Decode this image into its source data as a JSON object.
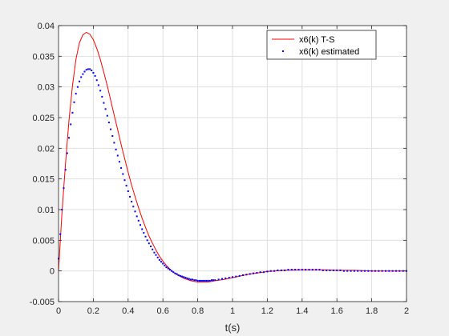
{
  "chart_data": {
    "type": "line",
    "title": "",
    "xlabel": "t(s)",
    "ylabel": "",
    "xlim": [
      0,
      2
    ],
    "ylim": [
      -0.005,
      0.04
    ],
    "x_ticks": [
      0,
      0.2,
      0.4,
      0.6,
      0.8,
      1,
      1.2,
      1.4,
      1.6,
      1.8,
      2
    ],
    "x_tick_labels": [
      "0",
      "0.2",
      "0.4",
      "0.6",
      "0.8",
      "1",
      "1.2",
      "1.4",
      "1.6",
      "1.8",
      "2"
    ],
    "y_ticks": [
      -0.005,
      0,
      0.005,
      0.01,
      0.015,
      0.02,
      0.025,
      0.03,
      0.035,
      0.04
    ],
    "y_tick_labels": [
      "-0.005",
      "0",
      "0.005",
      "0.01",
      "0.015",
      "0.02",
      "0.025",
      "0.03",
      "0.035",
      "0.04"
    ],
    "grid": true,
    "legend_position": "top-right",
    "series": [
      {
        "name": "x6(k) T-S",
        "style": "line",
        "color": "#ff0000",
        "x": [
          0,
          0.02,
          0.04,
          0.06,
          0.08,
          0.1,
          0.12,
          0.14,
          0.16,
          0.18,
          0.2,
          0.22,
          0.24,
          0.26,
          0.28,
          0.3,
          0.32,
          0.34,
          0.36,
          0.38,
          0.4,
          0.42,
          0.44,
          0.46,
          0.48,
          0.5,
          0.52,
          0.54,
          0.56,
          0.58,
          0.6,
          0.62,
          0.64,
          0.66,
          0.68,
          0.7,
          0.72,
          0.74,
          0.76,
          0.78,
          0.8,
          0.82,
          0.84,
          0.86,
          0.88,
          0.9,
          0.95,
          1.0,
          1.05,
          1.1,
          1.15,
          1.2,
          1.3,
          1.4,
          1.5,
          1.6,
          1.7,
          1.8,
          1.9,
          2.0
        ],
        "y": [
          0,
          0.0095,
          0.0175,
          0.0245,
          0.0302,
          0.0345,
          0.0372,
          0.0385,
          0.0389,
          0.0386,
          0.0377,
          0.0363,
          0.0345,
          0.0324,
          0.0302,
          0.0278,
          0.0254,
          0.023,
          0.0206,
          0.0183,
          0.0161,
          0.014,
          0.0121,
          0.0103,
          0.0086,
          0.0071,
          0.0057,
          0.0045,
          0.0034,
          0.0024,
          0.0016,
          0.0009,
          0.0003,
          -0.0002,
          -0.0006,
          -0.0009,
          -0.0012,
          -0.0014,
          -0.0016,
          -0.0017,
          -0.0018,
          -0.0018,
          -0.0018,
          -0.0018,
          -0.0017,
          -0.0016,
          -0.0014,
          -0.0011,
          -0.0008,
          -0.0005,
          -0.0003,
          -0.0001,
          0.0001,
          0.0002,
          0.0002,
          0.0001,
          0.0001,
          0.0,
          0.0,
          0.0
        ]
      },
      {
        "name": "x6(k) estimated",
        "style": "dots",
        "color": "#0000ff",
        "x": [
          0,
          0.01,
          0.02,
          0.03,
          0.04,
          0.05,
          0.06,
          0.07,
          0.08,
          0.09,
          0.1,
          0.11,
          0.12,
          0.13,
          0.14,
          0.15,
          0.16,
          0.17,
          0.18,
          0.19,
          0.2,
          0.21,
          0.22,
          0.23,
          0.24,
          0.25,
          0.26,
          0.27,
          0.28,
          0.29,
          0.3,
          0.31,
          0.32,
          0.33,
          0.34,
          0.35,
          0.36,
          0.37,
          0.38,
          0.39,
          0.4,
          0.41,
          0.42,
          0.43,
          0.44,
          0.45,
          0.46,
          0.47,
          0.48,
          0.49,
          0.5,
          0.51,
          0.52,
          0.53,
          0.54,
          0.55,
          0.56,
          0.57,
          0.58,
          0.59,
          0.6,
          0.61,
          0.62,
          0.63,
          0.64,
          0.65,
          0.66,
          0.67,
          0.68,
          0.69,
          0.7,
          0.71,
          0.72,
          0.73,
          0.74,
          0.75,
          0.76,
          0.77,
          0.78,
          0.79,
          0.8,
          0.81,
          0.82,
          0.83,
          0.84,
          0.85,
          0.86,
          0.87,
          0.88,
          0.89,
          0.9,
          0.92,
          0.94,
          0.96,
          0.98,
          1.0,
          1.02,
          1.04,
          1.06,
          1.08,
          1.1,
          1.12,
          1.14,
          1.16,
          1.18,
          1.2,
          1.22,
          1.24,
          1.26,
          1.28,
          1.3,
          1.32,
          1.34,
          1.36,
          1.38,
          1.4,
          1.42,
          1.44,
          1.46,
          1.48,
          1.5,
          1.52,
          1.54,
          1.56,
          1.58,
          1.6,
          1.62,
          1.64,
          1.66,
          1.68,
          1.7,
          1.72,
          1.74,
          1.76,
          1.78,
          1.8,
          1.82,
          1.84,
          1.86,
          1.88,
          1.9,
          1.92,
          1.94,
          1.96,
          1.98,
          2.0
        ],
        "y": [
          0.002,
          0.006,
          0.01,
          0.0135,
          0.0165,
          0.0192,
          0.0217,
          0.0239,
          0.0258,
          0.0275,
          0.0289,
          0.03,
          0.0309,
          0.0316,
          0.0321,
          0.0325,
          0.0328,
          0.0329,
          0.0329,
          0.0327,
          0.0323,
          0.0318,
          0.0311,
          0.0303,
          0.0294,
          0.0284,
          0.0274,
          0.0264,
          0.0253,
          0.0242,
          0.0231,
          0.022,
          0.0209,
          0.0198,
          0.0188,
          0.0178,
          0.0168,
          0.0158,
          0.0148,
          0.0139,
          0.013,
          0.0121,
          0.0113,
          0.0105,
          0.0097,
          0.0089,
          0.0082,
          0.0075,
          0.0068,
          0.0062,
          0.0056,
          0.005,
          0.0045,
          0.004,
          0.0035,
          0.003,
          0.0026,
          0.0022,
          0.0018,
          0.0015,
          0.0012,
          0.0009,
          0.0006,
          0.0004,
          0.0002,
          0.0,
          -0.0002,
          -0.0004,
          -0.0005,
          -0.0007,
          -0.0008,
          -0.0009,
          -0.001,
          -0.0011,
          -0.0012,
          -0.0013,
          -0.0014,
          -0.0014,
          -0.0015,
          -0.0015,
          -0.0016,
          -0.0016,
          -0.0016,
          -0.0016,
          -0.0016,
          -0.0016,
          -0.0016,
          -0.0016,
          -0.0015,
          -0.0015,
          -0.0015,
          -0.0014,
          -0.0013,
          -0.0012,
          -0.0011,
          -0.001,
          -0.0009,
          -0.0008,
          -0.0007,
          -0.0006,
          -0.0005,
          -0.0004,
          -0.0003,
          -0.0002,
          -0.0002,
          -0.0001,
          0.0,
          0.0,
          0.0001,
          0.0001,
          0.0001,
          0.0002,
          0.0002,
          0.0002,
          0.0002,
          0.0002,
          0.0002,
          0.0002,
          0.0002,
          0.0002,
          0.0002,
          0.0001,
          0.0001,
          0.0001,
          0.0001,
          0.0001,
          0.0001,
          0.0,
          0.0,
          0.0,
          0.0,
          0.0,
          0.0,
          0.0,
          0.0,
          0.0,
          0.0,
          0.0,
          0.0,
          0.0,
          0.0,
          0.0,
          0.0,
          0.0,
          0.0,
          0.0
        ]
      }
    ]
  }
}
